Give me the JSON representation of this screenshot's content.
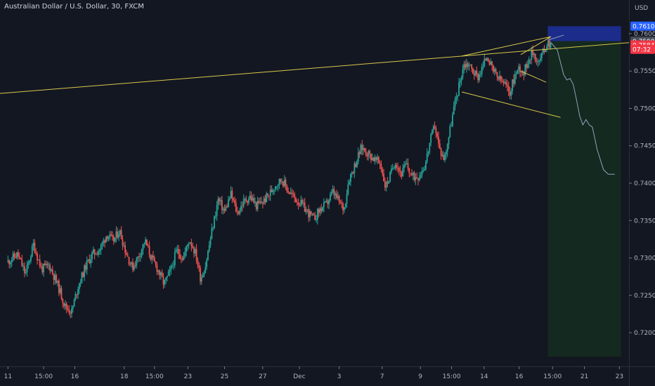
{
  "header": {
    "title": "Australian Dollar / U.S. Dollar, 30, FXCM",
    "currency": "USD"
  },
  "colors": {
    "background": "#131722",
    "up": "#26a69a",
    "down": "#ef5350",
    "trendline": "#d8c84a",
    "projection": "#8fa4b8",
    "target_zone": "#14291f",
    "stop_zone": "#1c2c8a",
    "badge_blue": "#2962ff",
    "badge_red": "#f23645",
    "badge_grey": "#4a4e58"
  },
  "chart_data": {
    "type": "candlestick",
    "title": "Australian Dollar / U.S. Dollar, 30, FXCM",
    "ylabel": "USD",
    "ylim": [
      0.7155,
      0.7645
    ],
    "y_ticks": [
      0.72,
      0.725,
      0.73,
      0.735,
      0.74,
      0.745,
      0.75,
      0.755,
      0.76
    ],
    "y_tick_labels": [
      "0.72000",
      "0.72500",
      "0.73000",
      "0.73500",
      "0.74000",
      "0.74500",
      "0.75000",
      "0.75500",
      "0.76000"
    ],
    "x_ticks": [
      {
        "label": "11",
        "day": 0
      },
      {
        "label": "15:00",
        "day": 1.12
      },
      {
        "label": "16",
        "day": 2.1
      },
      {
        "label": "18",
        "day": 3.65
      },
      {
        "label": "15:00",
        "day": 4.6
      },
      {
        "label": "23",
        "day": 5.65
      },
      {
        "label": "25",
        "day": 6.8
      },
      {
        "label": "27",
        "day": 8.0
      },
      {
        "label": "Dec",
        "day": 9.15
      },
      {
        "label": "3",
        "day": 10.4
      },
      {
        "label": "7",
        "day": 11.75
      },
      {
        "label": "9",
        "day": 12.95
      },
      {
        "label": "15:00",
        "day": 13.93
      },
      {
        "label": "14",
        "day": 14.95
      },
      {
        "label": "16",
        "day": 16.05
      },
      {
        "label": "15:00",
        "day": 17.1
      },
      {
        "label": "21",
        "day": 18.1
      },
      {
        "label": "23",
        "day": 19.2
      }
    ],
    "xlim": [
      -0.25,
      19.5
    ],
    "price_path": [
      [
        0.0,
        0.7295
      ],
      [
        0.3,
        0.7305
      ],
      [
        0.55,
        0.7278
      ],
      [
        0.8,
        0.7318
      ],
      [
        1.05,
        0.7285
      ],
      [
        1.3,
        0.729
      ],
      [
        1.55,
        0.7265
      ],
      [
        1.8,
        0.7235
      ],
      [
        2.0,
        0.7228
      ],
      [
        2.2,
        0.7262
      ],
      [
        2.45,
        0.729
      ],
      [
        2.65,
        0.7305
      ],
      [
        2.9,
        0.7312
      ],
      [
        3.1,
        0.7332
      ],
      [
        3.3,
        0.7322
      ],
      [
        3.5,
        0.7337
      ],
      [
        3.7,
        0.7308
      ],
      [
        3.9,
        0.7287
      ],
      [
        4.1,
        0.7302
      ],
      [
        4.3,
        0.7323
      ],
      [
        4.5,
        0.73
      ],
      [
        4.7,
        0.7285
      ],
      [
        4.9,
        0.7265
      ],
      [
        5.1,
        0.7282
      ],
      [
        5.3,
        0.731
      ],
      [
        5.5,
        0.73
      ],
      [
        5.7,
        0.7325
      ],
      [
        5.9,
        0.7305
      ],
      [
        6.05,
        0.7272
      ],
      [
        6.2,
        0.729
      ],
      [
        6.4,
        0.7335
      ],
      [
        6.6,
        0.7378
      ],
      [
        6.8,
        0.7362
      ],
      [
        7.0,
        0.7385
      ],
      [
        7.2,
        0.736
      ],
      [
        7.4,
        0.7375
      ],
      [
        7.6,
        0.7382
      ],
      [
        7.8,
        0.737
      ],
      [
        8.0,
        0.7375
      ],
      [
        8.2,
        0.7385
      ],
      [
        8.4,
        0.7398
      ],
      [
        8.6,
        0.7405
      ],
      [
        8.8,
        0.739
      ],
      [
        9.0,
        0.738
      ],
      [
        9.2,
        0.7372
      ],
      [
        9.4,
        0.7362
      ],
      [
        9.6,
        0.7352
      ],
      [
        9.8,
        0.7365
      ],
      [
        10.0,
        0.7372
      ],
      [
        10.2,
        0.7388
      ],
      [
        10.4,
        0.7375
      ],
      [
        10.55,
        0.7365
      ],
      [
        10.7,
        0.7405
      ],
      [
        10.9,
        0.7425
      ],
      [
        11.1,
        0.7448
      ],
      [
        11.3,
        0.744
      ],
      [
        11.5,
        0.7432
      ],
      [
        11.7,
        0.7426
      ],
      [
        11.85,
        0.7395
      ],
      [
        12.0,
        0.741
      ],
      [
        12.15,
        0.743
      ],
      [
        12.35,
        0.7412
      ],
      [
        12.5,
        0.7425
      ],
      [
        12.7,
        0.7408
      ],
      [
        12.9,
        0.741
      ],
      [
        13.1,
        0.7425
      ],
      [
        13.25,
        0.7455
      ],
      [
        13.4,
        0.7478
      ],
      [
        13.55,
        0.7445
      ],
      [
        13.7,
        0.7432
      ],
      [
        13.85,
        0.7465
      ],
      [
        14.0,
        0.75
      ],
      [
        14.15,
        0.7528
      ],
      [
        14.3,
        0.7558
      ],
      [
        14.45,
        0.756
      ],
      [
        14.6,
        0.755
      ],
      [
        14.75,
        0.7542
      ],
      [
        14.9,
        0.7555
      ],
      [
        15.05,
        0.7572
      ],
      [
        15.2,
        0.7552
      ],
      [
        15.4,
        0.754
      ],
      [
        15.6,
        0.7532
      ],
      [
        15.75,
        0.752
      ],
      [
        15.9,
        0.7542
      ],
      [
        16.05,
        0.7555
      ],
      [
        16.2,
        0.7548
      ],
      [
        16.35,
        0.7568
      ],
      [
        16.5,
        0.7575
      ],
      [
        16.65,
        0.756
      ],
      [
        16.8,
        0.7575
      ],
      [
        16.95,
        0.759
      ],
      [
        17.05,
        0.7585
      ]
    ],
    "projection": [
      [
        17.05,
        0.7588
      ],
      [
        17.25,
        0.7578
      ],
      [
        17.45,
        0.7545
      ],
      [
        17.55,
        0.7538
      ],
      [
        17.65,
        0.754
      ],
      [
        17.75,
        0.7532
      ],
      [
        17.85,
        0.7512
      ],
      [
        17.95,
        0.749
      ],
      [
        18.05,
        0.7478
      ],
      [
        18.15,
        0.7485
      ],
      [
        18.25,
        0.7478
      ],
      [
        18.35,
        0.7475
      ],
      [
        18.5,
        0.7445
      ],
      [
        18.7,
        0.7418
      ],
      [
        18.85,
        0.7412
      ],
      [
        19.05,
        0.7412
      ]
    ],
    "trendlines": [
      {
        "name": "upper-long",
        "from": [
          -0.25,
          0.752
        ],
        "to": [
          19.5,
          0.7588
        ]
      },
      {
        "name": "wedge-upper",
        "from": [
          14.25,
          0.757
        ],
        "to": [
          17.05,
          0.7596
        ]
      },
      {
        "name": "wedge-lower",
        "from": [
          14.25,
          0.7522
        ],
        "to": [
          17.35,
          0.7488
        ]
      },
      {
        "name": "inner-upper",
        "from": [
          16.1,
          0.7572
        ],
        "to": [
          17.05,
          0.7596
        ]
      },
      {
        "name": "inner-lower",
        "from": [
          16.1,
          0.755
        ],
        "to": [
          16.9,
          0.7535
        ]
      },
      {
        "name": "apex",
        "from": [
          17.0,
          0.7592
        ],
        "to": [
          17.45,
          0.7598
        ]
      }
    ],
    "position": {
      "entry": 0.759,
      "stop": 0.761,
      "entry_day": 16.95,
      "end_day": 19.25,
      "target_bottom": 0.7168
    },
    "price_labels": [
      {
        "text": "0.76100",
        "value": 0.761,
        "color_key": "badge_blue"
      },
      {
        "text": "0.75900",
        "value": 0.759,
        "color_key": "badge_grey"
      },
      {
        "text": "0.75848",
        "value": 0.75848,
        "color_key": "badge_red"
      },
      {
        "text": "07:32",
        "value": 0.7579,
        "color_key": "badge_red"
      }
    ]
  }
}
